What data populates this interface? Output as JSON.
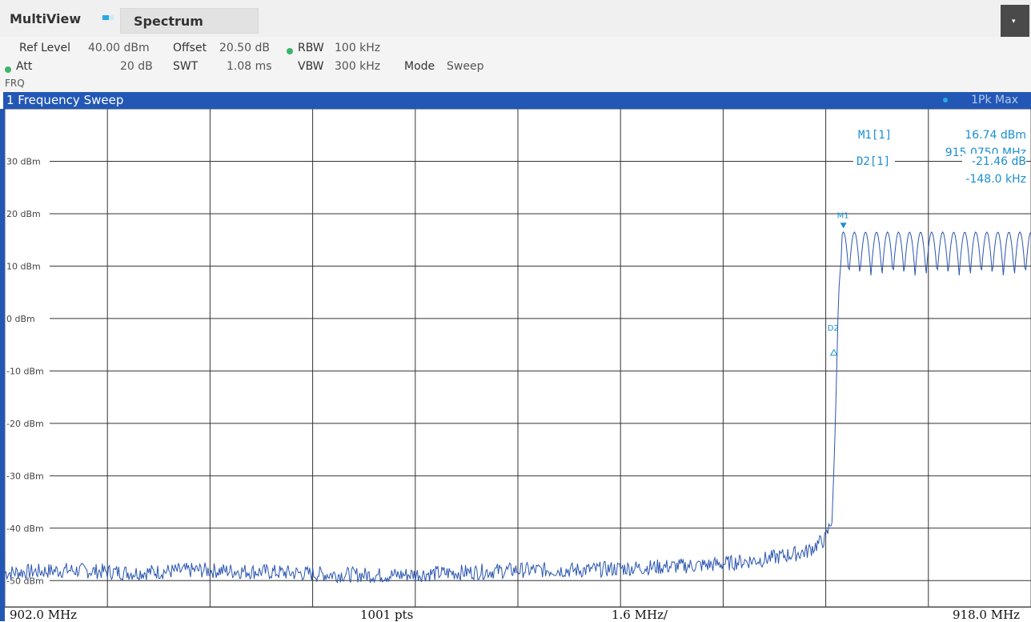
{
  "header": {
    "multiview_label": "MultiView",
    "tab_label": "Spectrum",
    "corner_button_label": "▾"
  },
  "settings": {
    "ref_level_key": "Ref Level",
    "ref_level_value": "40.00 dBm",
    "offset_key": "Offset",
    "offset_value": "20.50 dB",
    "rbw_key": "RBW",
    "rbw_value": "100 kHz",
    "att_key": "Att",
    "att_value": "20 dB",
    "swt_key": "SWT",
    "swt_value": "1.08 ms",
    "vbw_key": "VBW",
    "vbw_value": "300 kHz",
    "mode_key": "Mode",
    "mode_value": "Sweep",
    "frq_label": "FRQ"
  },
  "panel": {
    "title": "1 Frequency Sweep",
    "trace_label": "1Pk Max"
  },
  "markers": {
    "m1_name": "M1[1]",
    "m1_level": "16.74 dBm",
    "m1_freq": "915.0750 MHz",
    "d2_name": "D2[1]",
    "d2_level": "-21.46 dB",
    "d2_freq": "-148.0 kHz",
    "m1_label": "M1",
    "d2_label": "D2"
  },
  "footer": {
    "start": "902.0 MHz",
    "points": "1001 pts",
    "span_per_div": "1.6 MHz/",
    "stop": "918.0 MHz"
  },
  "colors": {
    "trace": "#2a55b0",
    "marker": "#1a8ed0",
    "title_bar": "#2257b6"
  },
  "chart_data": {
    "type": "line",
    "xlim": [
      902.0,
      918.0
    ],
    "ylim": [
      -55,
      40
    ],
    "y_tick_labels": [
      "30 dBm",
      "20 dBm",
      "10 dBm",
      "0 dBm",
      "-10 dBm",
      "-20 dBm",
      "-30 dBm",
      "-40 dBm",
      "-50 dBm"
    ],
    "y_tick_values": [
      30,
      20,
      10,
      0,
      -10,
      -20,
      -30,
      -40,
      -50
    ],
    "grid": true,
    "series": [
      {
        "x": [
          902.0,
          903.0,
          904.0,
          905.0,
          906.0,
          907.0,
          908.0,
          909.0,
          910.0,
          911.0,
          912.0,
          913.0,
          913.8,
          914.5,
          914.8,
          914.9,
          914.95,
          915.0,
          915.075,
          918.0
        ],
        "y": [
          -48.5,
          -48.0,
          -48.5,
          -48.0,
          -48.3,
          -48.8,
          -49.0,
          -48.5,
          -48.0,
          -48.0,
          -47.5,
          -47.0,
          -46.0,
          -44.5,
          -42.0,
          -38.0,
          -20.0,
          5.0,
          16.74,
          16.5
        ]
      }
    ],
    "markers": [
      {
        "name": "M1",
        "x": 915.075,
        "y": 16.74
      },
      {
        "name": "D2",
        "x": 914.927,
        "y": -4.72
      }
    ]
  }
}
